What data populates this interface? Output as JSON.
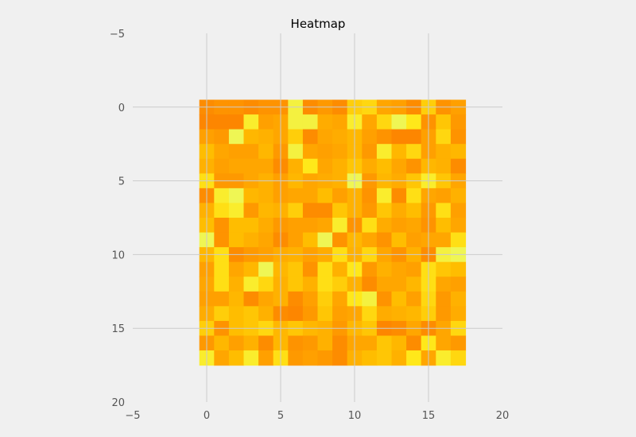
{
  "chart_data": {
    "type": "heatmap",
    "title": "Heatmap",
    "xlabel": "",
    "ylabel": "",
    "xlim": [
      -5,
      20
    ],
    "ylim": [
      20,
      -5
    ],
    "y_inverted": true,
    "xticks": [
      -5,
      0,
      5,
      10,
      15,
      20
    ],
    "yticks": [
      -5,
      0,
      5,
      10,
      15,
      20
    ],
    "grid": true,
    "colormap": "Wistia",
    "colormap_stops": [
      "#e4ff7a",
      "#ffe81a",
      "#ffbd00",
      "#ffa000",
      "#fc7f00"
    ],
    "value_range": [
      0,
      1
    ],
    "rows": 18,
    "cols": 18,
    "values": [
      [
        0.9,
        0.85,
        0.85,
        0.9,
        0.85,
        0.85,
        0.15,
        0.9,
        0.8,
        0.9,
        0.4,
        0.35,
        0.7,
        0.75,
        0.9,
        0.4,
        0.85,
        0.75
      ],
      [
        0.95,
        0.95,
        0.95,
        0.2,
        0.75,
        0.7,
        0.15,
        0.15,
        0.65,
        0.7,
        0.2,
        0.7,
        0.35,
        0.1,
        0.25,
        0.85,
        0.45,
        0.8
      ],
      [
        0.75,
        0.8,
        0.1,
        0.55,
        0.6,
        0.7,
        0.4,
        0.9,
        0.7,
        0.65,
        0.55,
        0.75,
        0.85,
        0.95,
        0.95,
        0.75,
        0.35,
        0.85
      ],
      [
        0.5,
        0.7,
        0.75,
        0.75,
        0.55,
        0.8,
        0.15,
        0.7,
        0.75,
        0.7,
        0.55,
        0.8,
        0.2,
        0.55,
        0.35,
        0.75,
        0.6,
        0.55
      ],
      [
        0.6,
        0.75,
        0.7,
        0.7,
        0.7,
        0.9,
        0.6,
        0.25,
        0.7,
        0.6,
        0.45,
        0.65,
        0.5,
        0.7,
        0.85,
        0.55,
        0.6,
        0.9
      ],
      [
        0.3,
        0.8,
        0.8,
        0.7,
        0.6,
        0.75,
        0.55,
        0.7,
        0.65,
        0.6,
        0.1,
        0.8,
        0.55,
        0.65,
        0.45,
        0.2,
        0.45,
        0.7
      ],
      [
        0.9,
        0.2,
        0.1,
        0.55,
        0.6,
        0.75,
        0.7,
        0.7,
        0.5,
        0.75,
        0.6,
        0.85,
        0.2,
        0.9,
        0.3,
        0.7,
        0.75,
        0.6
      ],
      [
        0.6,
        0.3,
        0.2,
        0.8,
        0.55,
        0.6,
        0.4,
        0.9,
        0.9,
        0.45,
        0.6,
        0.8,
        0.45,
        0.65,
        0.5,
        0.8,
        0.3,
        0.75
      ],
      [
        0.5,
        0.85,
        0.5,
        0.5,
        0.65,
        0.8,
        0.75,
        0.75,
        0.7,
        0.2,
        0.85,
        0.3,
        0.65,
        0.75,
        0.7,
        0.85,
        0.5,
        0.7
      ],
      [
        0.1,
        0.85,
        0.5,
        0.6,
        0.7,
        0.9,
        0.75,
        0.5,
        0.1,
        0.85,
        0.55,
        0.7,
        0.85,
        0.5,
        0.75,
        0.7,
        0.7,
        0.3
      ],
      [
        0.55,
        0.3,
        0.9,
        0.8,
        0.75,
        0.65,
        0.6,
        0.75,
        0.65,
        0.3,
        0.6,
        0.35,
        0.7,
        0.85,
        0.6,
        0.9,
        0.15,
        0.1
      ],
      [
        0.75,
        0.3,
        0.7,
        0.55,
        0.1,
        0.55,
        0.45,
        0.85,
        0.3,
        0.6,
        0.25,
        0.8,
        0.6,
        0.7,
        0.75,
        0.3,
        0.45,
        0.5
      ],
      [
        0.7,
        0.3,
        0.6,
        0.2,
        0.35,
        0.6,
        0.45,
        0.6,
        0.3,
        0.4,
        0.6,
        0.9,
        0.7,
        0.7,
        0.55,
        0.3,
        0.7,
        0.75
      ],
      [
        0.75,
        0.75,
        0.55,
        0.9,
        0.7,
        0.6,
        0.9,
        0.75,
        0.4,
        0.7,
        0.25,
        0.15,
        0.85,
        0.5,
        0.75,
        0.35,
        0.8,
        0.6
      ],
      [
        0.65,
        0.4,
        0.5,
        0.45,
        0.6,
        0.9,
        0.95,
        0.8,
        0.45,
        0.75,
        0.7,
        0.35,
        0.65,
        0.6,
        0.55,
        0.4,
        0.8,
        0.65
      ],
      [
        0.4,
        0.85,
        0.5,
        0.45,
        0.35,
        0.55,
        0.45,
        0.55,
        0.6,
        0.8,
        0.55,
        0.45,
        0.95,
        0.9,
        0.7,
        0.9,
        0.7,
        0.35
      ],
      [
        0.8,
        0.55,
        0.75,
        0.6,
        0.9,
        0.55,
        0.85,
        0.8,
        0.6,
        0.9,
        0.7,
        0.7,
        0.45,
        0.55,
        0.9,
        0.25,
        0.7,
        0.8
      ],
      [
        0.2,
        0.7,
        0.5,
        0.2,
        0.75,
        0.3,
        0.8,
        0.75,
        0.8,
        0.9,
        0.6,
        0.5,
        0.45,
        0.6,
        0.25,
        0.7,
        0.2,
        0.35
      ]
    ]
  }
}
